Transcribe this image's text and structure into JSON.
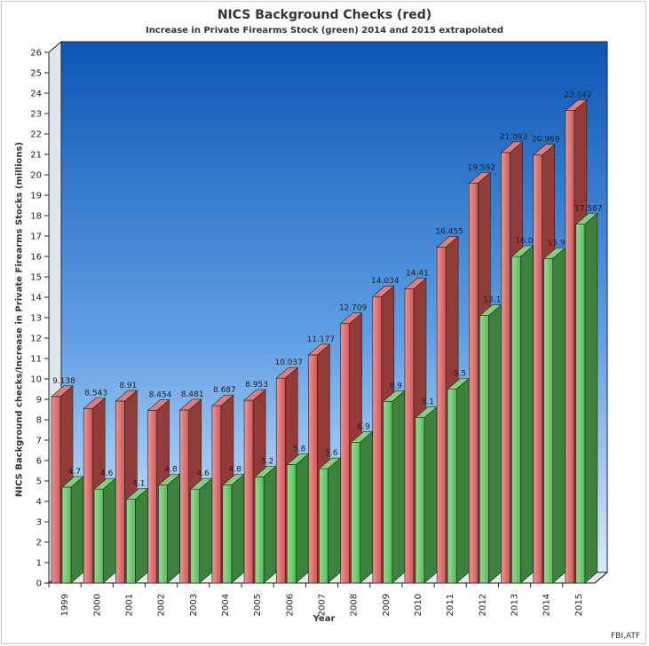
{
  "chart_data": {
    "type": "bar",
    "title": "NICS Background Checks (red)",
    "subtitle": "Increase in Private Firearms Stock (green)  2014 and 2015 extrapolated",
    "xlabel": "Year",
    "ylabel": "NICS Background checks/Increase in Private Firearms Stocks (millions)",
    "source": "FBI,ATF",
    "ylim": [
      0,
      26
    ],
    "yticks": [
      "0",
      "1",
      "2",
      "3",
      "4",
      "5",
      "6",
      "7",
      "8",
      "9",
      "10",
      "11",
      "12",
      "13",
      "14",
      "15",
      "16",
      "17",
      "18",
      "19",
      "20",
      "21",
      "22",
      "23",
      "24",
      "25",
      "26"
    ],
    "grid": false,
    "categories": [
      "1999",
      "2000",
      "2001",
      "2002",
      "2003",
      "2004",
      "2005",
      "2006",
      "2007",
      "2008",
      "2009",
      "2010",
      "2011",
      "2012",
      "2013",
      "2014",
      "2015"
    ],
    "series": [
      {
        "color": "#e05a5a",
        "values": [
          9.138,
          8.543,
          8.91,
          8.454,
          8.481,
          8.687,
          8.953,
          10.037,
          11.177,
          12.709,
          14.034,
          14.41,
          16.455,
          19.592,
          21.093,
          20.969,
          23.142
        ],
        "labels": [
          "9.138",
          "8.543",
          "8.91",
          "8.454",
          "8.481",
          "8.687",
          "8.953",
          "10.037",
          "11.177",
          "12.709",
          "14.034",
          "14.41",
          "16.455",
          "19.592",
          "21.093",
          "20.969",
          "23.142"
        ]
      },
      {
        "color": "#5cc85c",
        "values": [
          4.7,
          4.6,
          4.1,
          4.8,
          4.6,
          4.8,
          5.2,
          5.8,
          5.6,
          6.9,
          8.9,
          8.1,
          9.5,
          13.1,
          16.0,
          15.9,
          17.587
        ],
        "labels": [
          "4.7",
          "4.6",
          "4.1",
          "4.8",
          "4.6",
          "4.8",
          "5.2",
          "5.8",
          "5.6",
          "6.9",
          "8.9",
          "8.1",
          "9.5",
          "13.1",
          "16.0",
          "15.9",
          "17.587"
        ]
      }
    ]
  }
}
